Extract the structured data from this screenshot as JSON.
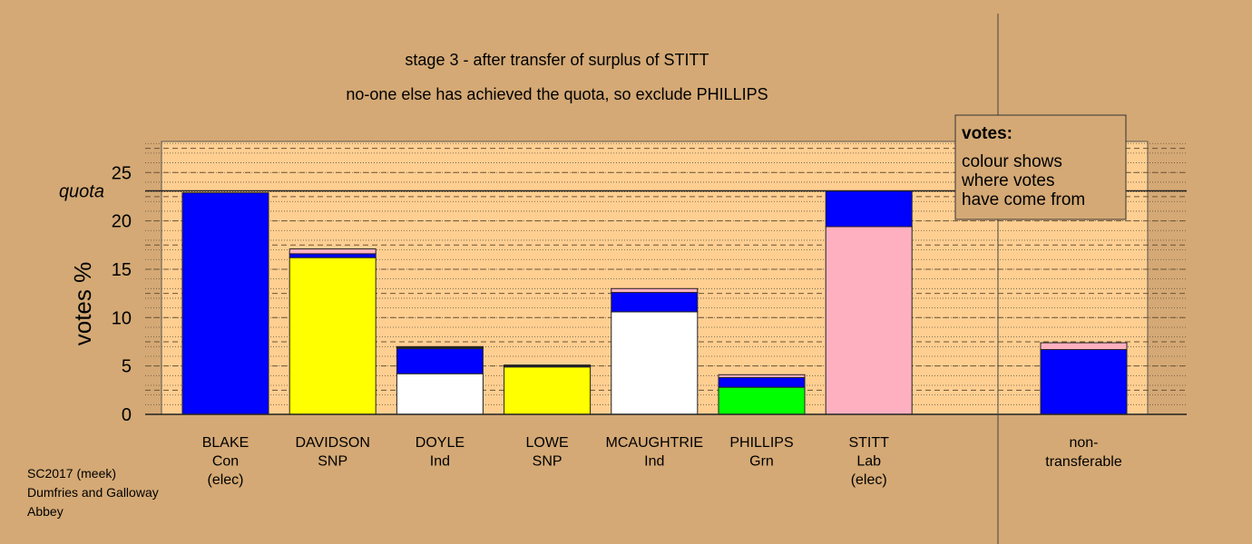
{
  "chart_data": {
    "type": "bar",
    "stacked": true,
    "title": "stage 3 - after transfer of surplus of STITT",
    "subtitle": "no-one else has achieved the quota, so exclude PHILLIPS",
    "ylabel": "votes %",
    "ylim": [
      0,
      28
    ],
    "yticks": [
      0,
      5,
      10,
      15,
      20,
      25
    ],
    "quota": 23.1,
    "quota_label": "quota",
    "grid": true,
    "legend": {
      "title": "votes:",
      "lines": [
        "colour shows",
        "where votes",
        "have come from"
      ],
      "placement": "top-right"
    },
    "colors": {
      "Con": "#0000ff",
      "SNP": "#ffff00",
      "Ind": "#ffffff",
      "Grn": "#00ff00",
      "Lab": "#ffb0c0",
      "other": "#333333"
    },
    "candidates": [
      {
        "name": "BLAKE",
        "party": "Con",
        "note": "(elec)",
        "segments": [
          {
            "source": "Con",
            "value": 22.9
          }
        ]
      },
      {
        "name": "DAVIDSON",
        "party": "SNP",
        "note": "",
        "segments": [
          {
            "source": "SNP",
            "value": 16.2
          },
          {
            "source": "Con",
            "value": 0.4
          },
          {
            "source": "Lab",
            "value": 0.5
          }
        ]
      },
      {
        "name": "DOYLE",
        "party": "Ind",
        "note": "",
        "segments": [
          {
            "source": "Ind",
            "value": 4.2
          },
          {
            "source": "Con",
            "value": 2.6
          },
          {
            "source": "Lab",
            "value": 0.1
          },
          {
            "source": "other",
            "value": 0.1
          }
        ]
      },
      {
        "name": "LOWE",
        "party": "SNP",
        "note": "",
        "segments": [
          {
            "source": "SNP",
            "value": 4.9
          },
          {
            "source": "Con",
            "value": 0.1
          },
          {
            "source": "other",
            "value": 0.1
          }
        ]
      },
      {
        "name": "MCAUGHTRIE",
        "party": "Ind",
        "note": "",
        "segments": [
          {
            "source": "Ind",
            "value": 10.6
          },
          {
            "source": "Con",
            "value": 2.0
          },
          {
            "source": "Lab",
            "value": 0.4
          }
        ]
      },
      {
        "name": "PHILLIPS",
        "party": "Grn",
        "note": "",
        "segments": [
          {
            "source": "Grn",
            "value": 2.8
          },
          {
            "source": "Con",
            "value": 1.0
          },
          {
            "source": "Lab",
            "value": 0.3
          }
        ]
      },
      {
        "name": "STITT",
        "party": "Lab",
        "note": "(elec)",
        "segments": [
          {
            "source": "Lab",
            "value": 19.4
          },
          {
            "source": "Con",
            "value": 3.7
          }
        ]
      }
    ],
    "nontransferable": {
      "label_line1": "non-",
      "label_line2": "transferable",
      "segments": [
        {
          "source": "Con",
          "value": 6.7
        },
        {
          "source": "Lab",
          "value": 0.7
        }
      ]
    }
  },
  "footer": {
    "line1": "SC2017 (meek)",
    "line2": "Dumfries and Galloway",
    "line3": "Abbey"
  }
}
